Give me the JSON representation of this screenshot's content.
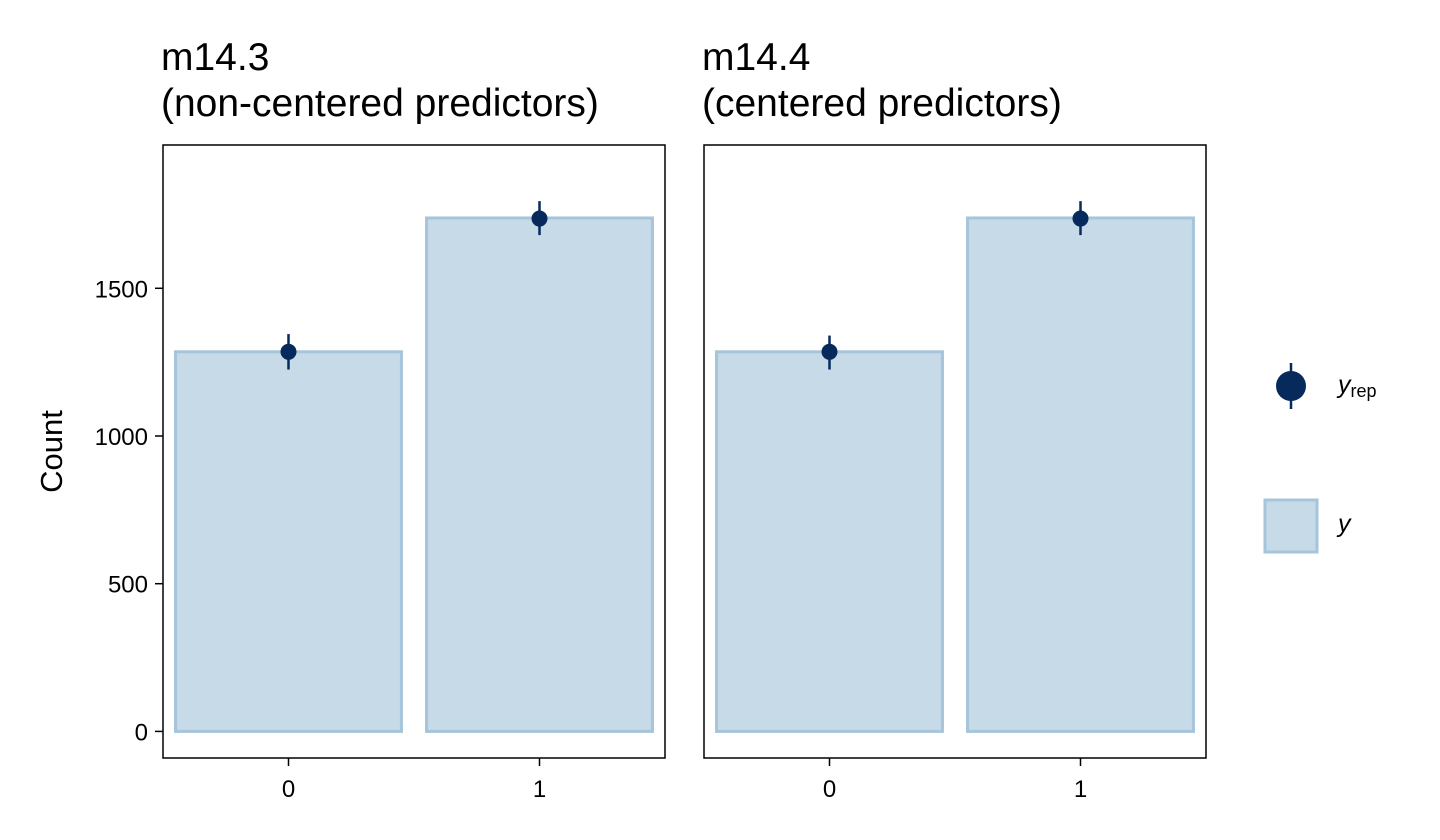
{
  "chart_data": [
    {
      "type": "bar",
      "title_line1": "m14.3",
      "title_line2": "(non-centered predictors)",
      "categories": [
        "0",
        "1"
      ],
      "series": [
        {
          "name": "y",
          "values": [
            1285,
            1738
          ]
        },
        {
          "name": "y_rep",
          "values": [
            1285,
            1736
          ],
          "interval_low": [
            1225,
            1680
          ],
          "interval_high": [
            1345,
            1795
          ]
        }
      ],
      "ylabel": "Count",
      "xlabel": "",
      "ylim": [
        -90,
        1985
      ],
      "yticks": [
        0,
        500,
        1000,
        1500
      ],
      "grid": false
    },
    {
      "type": "bar",
      "title_line1": "m14.4",
      "title_line2": "(centered predictors)",
      "categories": [
        "0",
        "1"
      ],
      "series": [
        {
          "name": "y",
          "values": [
            1285,
            1738
          ]
        },
        {
          "name": "y_rep",
          "values": [
            1285,
            1736
          ],
          "interval_low": [
            1225,
            1680
          ],
          "interval_high": [
            1340,
            1795
          ]
        }
      ],
      "ylabel": "",
      "xlabel": "",
      "ylim": [
        -90,
        1985
      ],
      "yticks": [
        0,
        500,
        1000,
        1500
      ],
      "grid": false
    }
  ],
  "legend": {
    "placement": "right",
    "rep_label": "y",
    "rep_subscript": "rep",
    "obs_label": "y"
  },
  "colors": {
    "bar_fill": "#c6dae8",
    "bar_edge": "#a6c4da",
    "point": "#062a5c"
  }
}
